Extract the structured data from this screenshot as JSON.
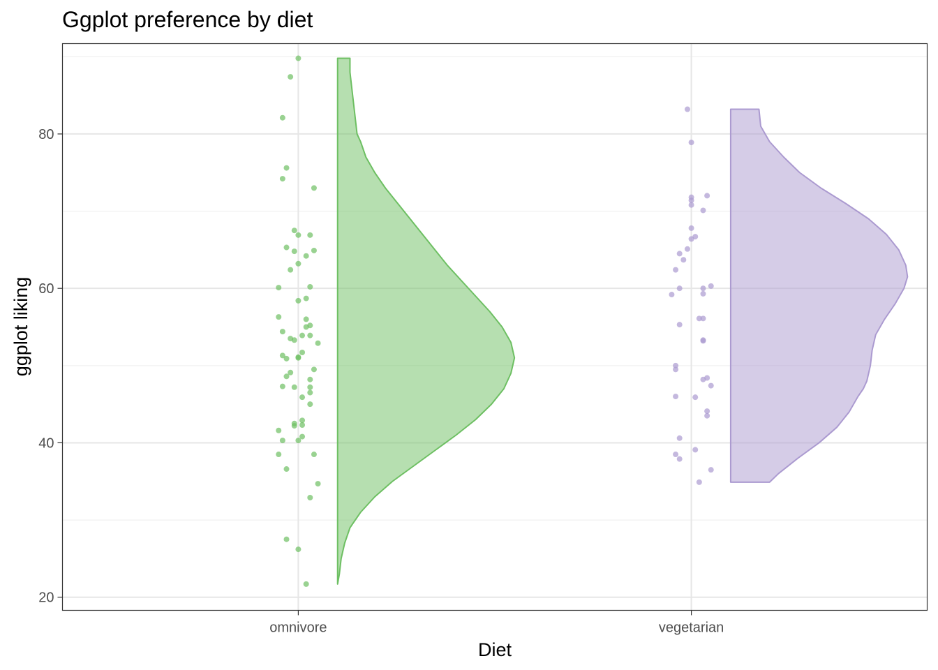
{
  "chart_data": {
    "type": "raincloud",
    "title": "Ggplot preference by diet",
    "xlabel": "Diet",
    "ylabel": "ggplot liking",
    "categories": [
      "omnivore",
      "vegetarian"
    ],
    "ylim": [
      18.3,
      91.7
    ],
    "yticks": [
      20,
      40,
      60,
      80
    ],
    "grid": true,
    "colors": {
      "omnivore": "#6dbf62",
      "vegetarian": "#ab9ad0",
      "panel_border": "#333333",
      "grid_major": "#e6e6e6",
      "grid_minor": "#ededed"
    },
    "series": [
      {
        "name": "omnivore",
        "points": [
          {
            "jitter": 0.0,
            "y": 89.8
          },
          {
            "jitter": -0.02,
            "y": 87.4
          },
          {
            "jitter": -0.04,
            "y": 82.1
          },
          {
            "jitter": -0.03,
            "y": 75.6
          },
          {
            "jitter": -0.04,
            "y": 74.2
          },
          {
            "jitter": 0.04,
            "y": 73.0
          },
          {
            "jitter": -0.01,
            "y": 67.5
          },
          {
            "jitter": 0.0,
            "y": 66.9
          },
          {
            "jitter": 0.03,
            "y": 66.9
          },
          {
            "jitter": -0.03,
            "y": 65.3
          },
          {
            "jitter": -0.01,
            "y": 64.8
          },
          {
            "jitter": 0.04,
            "y": 64.9
          },
          {
            "jitter": 0.02,
            "y": 64.2
          },
          {
            "jitter": 0.0,
            "y": 63.2
          },
          {
            "jitter": -0.02,
            "y": 62.4
          },
          {
            "jitter": -0.05,
            "y": 60.1
          },
          {
            "jitter": 0.03,
            "y": 60.2
          },
          {
            "jitter": 0.02,
            "y": 58.7
          },
          {
            "jitter": 0.0,
            "y": 58.4
          },
          {
            "jitter": 0.02,
            "y": 56.0
          },
          {
            "jitter": -0.05,
            "y": 56.3
          },
          {
            "jitter": 0.03,
            "y": 55.2
          },
          {
            "jitter": 0.02,
            "y": 55.0
          },
          {
            "jitter": -0.04,
            "y": 54.4
          },
          {
            "jitter": 0.01,
            "y": 53.9
          },
          {
            "jitter": 0.03,
            "y": 53.9
          },
          {
            "jitter": -0.02,
            "y": 53.5
          },
          {
            "jitter": -0.01,
            "y": 53.3
          },
          {
            "jitter": 0.05,
            "y": 52.9
          },
          {
            "jitter": 0.01,
            "y": 51.7
          },
          {
            "jitter": -0.04,
            "y": 51.3
          },
          {
            "jitter": -0.03,
            "y": 50.9
          },
          {
            "jitter": 0.0,
            "y": 51.0
          },
          {
            "jitter": 0.0,
            "y": 51.1
          },
          {
            "jitter": 0.04,
            "y": 49.5
          },
          {
            "jitter": -0.02,
            "y": 49.1
          },
          {
            "jitter": -0.03,
            "y": 48.6
          },
          {
            "jitter": 0.03,
            "y": 48.2
          },
          {
            "jitter": -0.04,
            "y": 47.3
          },
          {
            "jitter": -0.01,
            "y": 47.2
          },
          {
            "jitter": 0.03,
            "y": 47.2
          },
          {
            "jitter": 0.03,
            "y": 46.5
          },
          {
            "jitter": 0.01,
            "y": 45.9
          },
          {
            "jitter": 0.03,
            "y": 45.0
          },
          {
            "jitter": 0.01,
            "y": 42.9
          },
          {
            "jitter": -0.01,
            "y": 42.5
          },
          {
            "jitter": -0.01,
            "y": 42.2
          },
          {
            "jitter": 0.01,
            "y": 42.3
          },
          {
            "jitter": -0.05,
            "y": 41.6
          },
          {
            "jitter": 0.01,
            "y": 40.8
          },
          {
            "jitter": -0.04,
            "y": 40.3
          },
          {
            "jitter": 0.0,
            "y": 40.3
          },
          {
            "jitter": -0.05,
            "y": 38.5
          },
          {
            "jitter": 0.04,
            "y": 38.5
          },
          {
            "jitter": -0.03,
            "y": 36.6
          },
          {
            "jitter": 0.05,
            "y": 34.7
          },
          {
            "jitter": 0.03,
            "y": 32.9
          },
          {
            "jitter": -0.03,
            "y": 27.5
          },
          {
            "jitter": 0.0,
            "y": 26.2
          },
          {
            "jitter": 0.02,
            "y": 21.7
          }
        ],
        "density": {
          "width": 0.45,
          "y": [
            21.7,
            23.0,
            25.0,
            27.0,
            29.0,
            31.0,
            33.0,
            35.0,
            37.0,
            39.0,
            41.0,
            43.0,
            45.0,
            47.0,
            49.0,
            51.0,
            53.0,
            55.0,
            57.0,
            59.0,
            61.0,
            63.0,
            65.0,
            67.0,
            69.0,
            71.0,
            73.0,
            75.0,
            77.0,
            79.0,
            80.0,
            82.0,
            84.0,
            86.0,
            88.0,
            89.8
          ],
          "d": [
            0.0,
            0.01,
            0.02,
            0.04,
            0.07,
            0.13,
            0.21,
            0.31,
            0.43,
            0.55,
            0.67,
            0.78,
            0.87,
            0.94,
            0.98,
            1.0,
            0.98,
            0.93,
            0.86,
            0.78,
            0.7,
            0.62,
            0.55,
            0.48,
            0.41,
            0.34,
            0.27,
            0.21,
            0.16,
            0.13,
            0.11,
            0.1,
            0.09,
            0.08,
            0.07,
            0.07
          ]
        }
      },
      {
        "name": "vegetarian",
        "points": [
          {
            "jitter": -0.01,
            "y": 83.2
          },
          {
            "jitter": 0.0,
            "y": 78.9
          },
          {
            "jitter": 0.04,
            "y": 72.0
          },
          {
            "jitter": 0.0,
            "y": 71.8
          },
          {
            "jitter": 0.0,
            "y": 71.4
          },
          {
            "jitter": 0.0,
            "y": 70.8
          },
          {
            "jitter": 0.03,
            "y": 70.1
          },
          {
            "jitter": 0.0,
            "y": 67.8
          },
          {
            "jitter": 0.01,
            "y": 66.7
          },
          {
            "jitter": 0.0,
            "y": 66.4
          },
          {
            "jitter": -0.01,
            "y": 65.1
          },
          {
            "jitter": -0.03,
            "y": 64.5
          },
          {
            "jitter": -0.02,
            "y": 63.7
          },
          {
            "jitter": -0.04,
            "y": 62.4
          },
          {
            "jitter": 0.05,
            "y": 60.3
          },
          {
            "jitter": -0.03,
            "y": 60.0
          },
          {
            "jitter": 0.03,
            "y": 60.0
          },
          {
            "jitter": 0.03,
            "y": 59.3
          },
          {
            "jitter": -0.05,
            "y": 59.2
          },
          {
            "jitter": 0.02,
            "y": 56.1
          },
          {
            "jitter": 0.03,
            "y": 56.1
          },
          {
            "jitter": -0.03,
            "y": 55.3
          },
          {
            "jitter": 0.03,
            "y": 53.3
          },
          {
            "jitter": 0.03,
            "y": 53.2
          },
          {
            "jitter": -0.04,
            "y": 50.0
          },
          {
            "jitter": -0.04,
            "y": 49.5
          },
          {
            "jitter": 0.04,
            "y": 48.4
          },
          {
            "jitter": 0.03,
            "y": 48.2
          },
          {
            "jitter": 0.05,
            "y": 47.4
          },
          {
            "jitter": -0.04,
            "y": 46.0
          },
          {
            "jitter": 0.01,
            "y": 45.9
          },
          {
            "jitter": 0.04,
            "y": 44.1
          },
          {
            "jitter": 0.04,
            "y": 43.5
          },
          {
            "jitter": -0.03,
            "y": 40.6
          },
          {
            "jitter": 0.01,
            "y": 39.1
          },
          {
            "jitter": -0.04,
            "y": 38.5
          },
          {
            "jitter": -0.03,
            "y": 37.9
          },
          {
            "jitter": 0.05,
            "y": 36.5
          },
          {
            "jitter": 0.02,
            "y": 34.9
          }
        ],
        "density": {
          "width": 0.45,
          "y": [
            34.9,
            36.0,
            38.0,
            40.0,
            42.0,
            44.0,
            46.0,
            47.0,
            48.0,
            49.0,
            50.0,
            52.0,
            54.0,
            56.0,
            58.0,
            60.0,
            61.5,
            63.0,
            65.0,
            67.0,
            69.0,
            71.0,
            73.0,
            75.0,
            77.0,
            79.0,
            81.0,
            83.2
          ],
          "d": [
            0.22,
            0.27,
            0.38,
            0.5,
            0.6,
            0.67,
            0.72,
            0.75,
            0.77,
            0.78,
            0.79,
            0.8,
            0.82,
            0.87,
            0.93,
            0.98,
            1.0,
            0.99,
            0.95,
            0.88,
            0.78,
            0.65,
            0.51,
            0.39,
            0.3,
            0.22,
            0.17,
            0.16
          ]
        }
      }
    ]
  }
}
